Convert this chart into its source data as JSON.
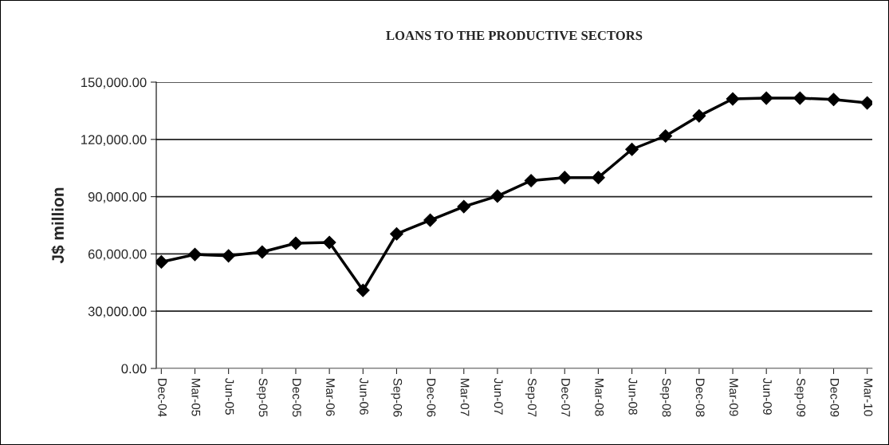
{
  "chart_data": {
    "type": "line",
    "title": "LOANS TO THE PRODUCTIVE SECTORS",
    "ylabel": "J$ million",
    "categories": [
      "Dec-04",
      "Mar-05",
      "Jun-05",
      "Sep-05",
      "Dec-05",
      "Mar-06",
      "Jun-06",
      "Sep-06",
      "Dec-06",
      "Mar-07",
      "Jun-07",
      "Sep-07",
      "Dec-07",
      "Mar-08",
      "Jun-08",
      "Sep-08",
      "Dec-08",
      "Mar-09",
      "Jun-09",
      "Sep-09",
      "Dec-09",
      "Mar-10"
    ],
    "series": [
      {
        "color": "#000000",
        "values": [
          55800,
          59700,
          59000,
          61000,
          65600,
          66000,
          40900,
          70500,
          77700,
          84800,
          90300,
          98400,
          100000,
          100000,
          114800,
          121800,
          132300,
          141200,
          141600,
          141600,
          140900,
          139100
        ]
      }
    ],
    "ylim": [
      0,
      150000
    ],
    "yticks": [
      {
        "value": 0,
        "label": "0.00"
      },
      {
        "value": 30000,
        "label": "30,000.00"
      },
      {
        "value": 60000,
        "label": "60,000.00"
      },
      {
        "value": 90000,
        "label": "90,000.00"
      },
      {
        "value": 120000,
        "label": "120,000.00"
      },
      {
        "value": 150000,
        "label": "150,000.00"
      }
    ],
    "grid": "y",
    "marker": "diamond",
    "line_style": "solid",
    "legend": false
  }
}
